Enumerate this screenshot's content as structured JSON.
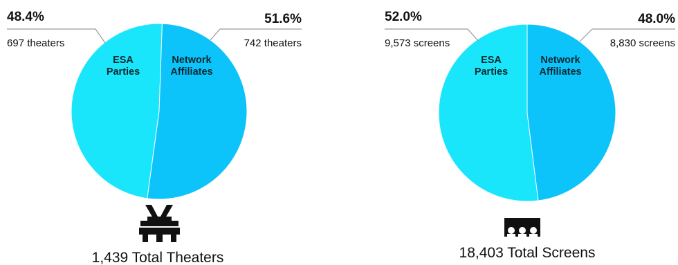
{
  "chart_data": [
    {
      "type": "pie",
      "title": "",
      "slices": [
        {
          "label_line1": "ESA",
          "label_line2": "Parties",
          "percent_text": "48.4%",
          "value": 48.4,
          "count_text": "697 theaters",
          "color": "#19E6FA"
        },
        {
          "label_line1": "Network",
          "label_line2": "Affiliates",
          "percent_text": "51.6%",
          "value": 51.6,
          "count_text": "742 theaters",
          "color": "#0CC3FA"
        }
      ],
      "total_text": "1,439 Total Theaters",
      "icon": "theater-icon"
    },
    {
      "type": "pie",
      "title": "",
      "slices": [
        {
          "label_line1": "ESA",
          "label_line2": "Parties",
          "percent_text": "52.0%",
          "value": 52.0,
          "count_text": "9,573 screens",
          "color": "#19E6FA"
        },
        {
          "label_line1": "Network",
          "label_line2": "Affiliates",
          "percent_text": "48.0%",
          "value": 48.0,
          "count_text": "8,830 screens",
          "color": "#0CC3FA"
        }
      ],
      "total_text": "18,403 Total Screens",
      "icon": "screens-icon"
    }
  ]
}
